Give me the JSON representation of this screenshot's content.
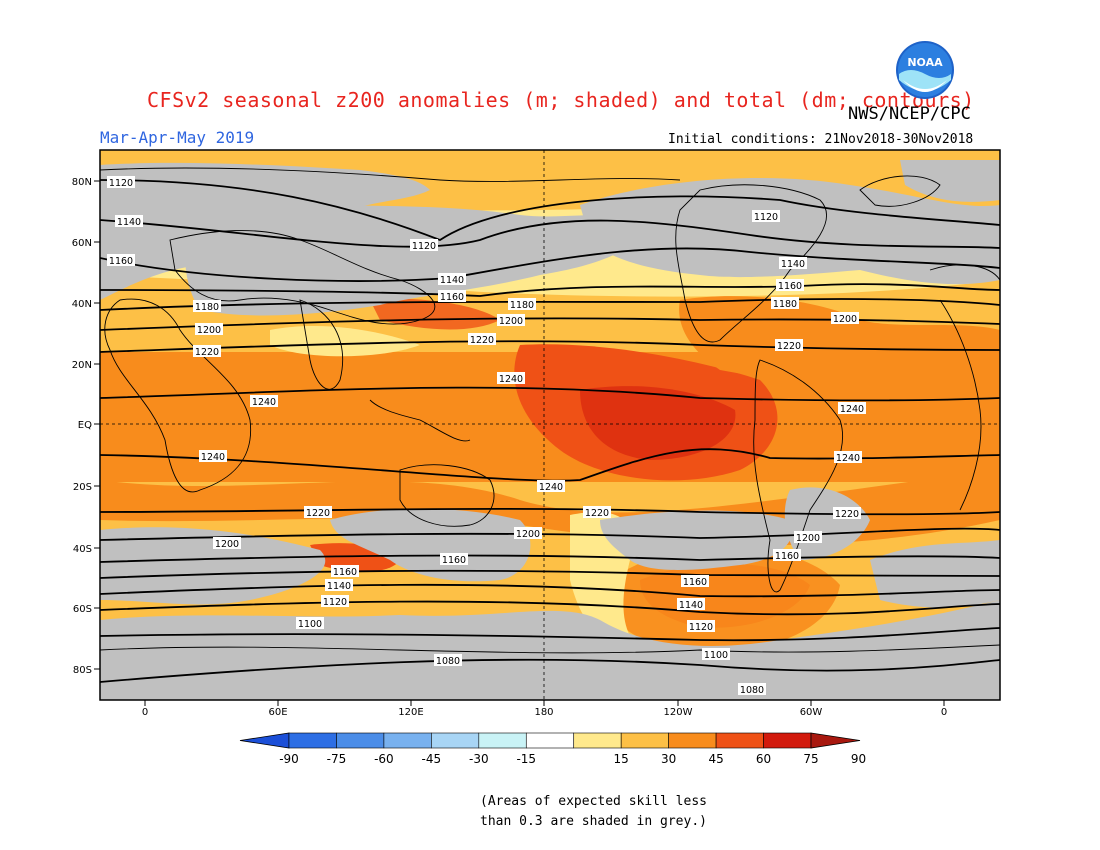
{
  "header": {
    "title": "CFSv2 seasonal z200 anomalies (m; shaded) and total (dm; contours)",
    "agency": "NWS/NCEP/CPC",
    "season": "Mar-Apr-May 2019",
    "initial_conditions": "Initial conditions: 21Nov2018-30Nov2018",
    "logo_text": "NOAA"
  },
  "map": {
    "lat_labels": [
      "80N",
      "60N",
      "40N",
      "20N",
      "EQ",
      "20S",
      "40S",
      "60S",
      "80S"
    ],
    "lon_labels": [
      "0",
      "60E",
      "120E",
      "180",
      "120W",
      "60W",
      "0"
    ],
    "colors": {
      "skill_mask": "#c0c0c0",
      "pos_15_30": "#ffe98c",
      "pos_30_45": "#fdc046",
      "pos_45_60": "#f88c1c",
      "pos_60_75": "#ef5116",
      "pos_75_90": "#d21a0d",
      "coast": "#000000",
      "contour": "#000000"
    },
    "contours": [
      {
        "label": "1080"
      },
      {
        "label": "1100"
      },
      {
        "label": "1120"
      },
      {
        "label": "1140"
      },
      {
        "label": "1160"
      },
      {
        "label": "1180"
      },
      {
        "label": "1200"
      },
      {
        "label": "1220"
      },
      {
        "label": "1240"
      }
    ]
  },
  "colorbar": {
    "labels": [
      "-90",
      "-75",
      "-60",
      "-45",
      "-30",
      "-15",
      "15",
      "30",
      "45",
      "60",
      "75",
      "90"
    ],
    "colors": [
      "#1b4fd8",
      "#2d6ee4",
      "#4b8de8",
      "#78b1ef",
      "#a8d5f5",
      "#c9f3f6",
      "#ffffff",
      "#ffe98c",
      "#fdc046",
      "#f88c1c",
      "#ef5116",
      "#d21a0d",
      "#a8180f"
    ]
  },
  "footnote": {
    "line1": "(Areas of expected skill less",
    "line2": "than 0.3 are shaded in grey.)"
  }
}
